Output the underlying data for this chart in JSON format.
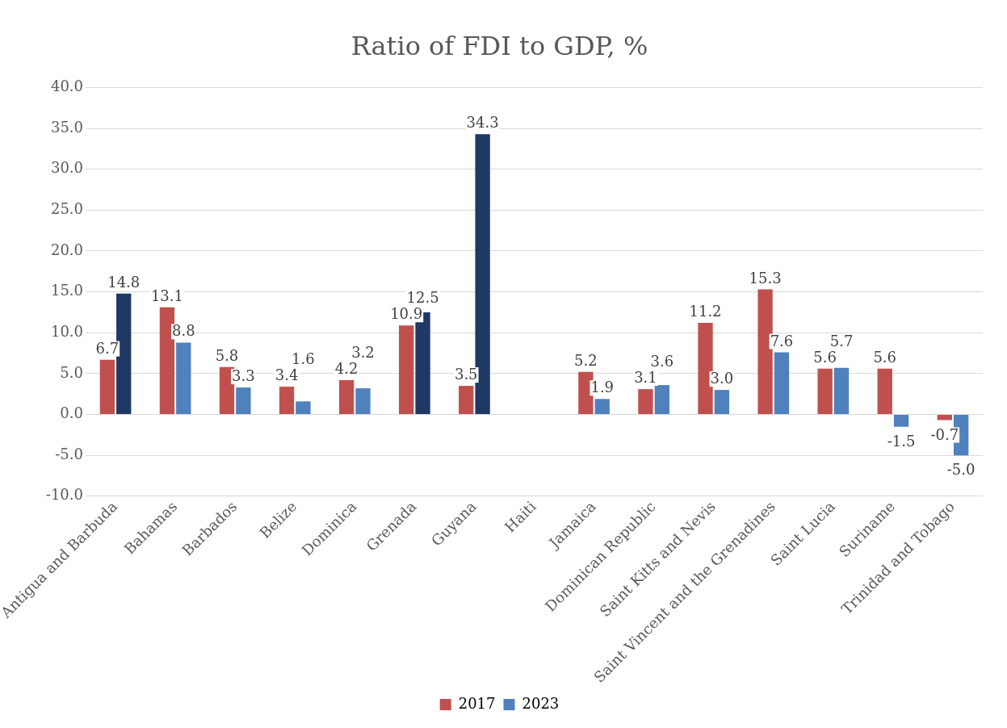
{
  "chart_data": {
    "type": "bar",
    "title": "Ratio of FDI to GDP, %",
    "categories": [
      "Antigua and Barbuda",
      "Bahamas",
      "Barbados",
      "Belize",
      "Dominica",
      "Grenada",
      "Guyana",
      "Haiti",
      "Jamaica",
      "Dominican Republic",
      "Saint Kitts and Nevis",
      "Saint Vincent and the Grenadines",
      "Saint Lucia",
      "Suriname",
      "Trinidad and Tobago"
    ],
    "series": [
      {
        "name": "2017",
        "color": "#c0504d",
        "values": [
          6.7,
          13.1,
          5.8,
          3.4,
          4.2,
          10.9,
          3.5,
          null,
          5.2,
          3.1,
          11.2,
          15.3,
          5.6,
          5.6,
          -0.7
        ],
        "value_labels": [
          "6.7",
          "13.1",
          "5.8",
          "3.4",
          "4.2",
          "10.9",
          "3.5",
          null,
          "5.2",
          "3.1",
          "11.2",
          "15.3",
          "5.6",
          "5.6",
          "-0.7"
        ]
      },
      {
        "name": "2023",
        "color": "#4f81bd",
        "colors": [
          "#1f3864",
          "#4f81bd",
          "#4f81bd",
          "#4f81bd",
          "#4f81bd",
          "#1f3864",
          "#1f3864",
          "#4f81bd",
          "#4f81bd",
          "#4f81bd",
          "#4f81bd",
          "#4f81bd",
          "#4f81bd",
          "#4f81bd",
          "#4f81bd"
        ],
        "values": [
          14.8,
          8.8,
          3.3,
          1.6,
          3.2,
          12.5,
          34.3,
          null,
          1.9,
          3.6,
          3.0,
          7.6,
          5.7,
          -1.5,
          -5.0
        ],
        "value_labels": [
          "14.8",
          "8.8",
          "3.3",
          "1.6",
          "3.2",
          "12.5",
          "34.3",
          null,
          "1.9",
          "3.6",
          "3.0",
          "7.6",
          "5.7",
          "-1.5",
          "-5.0"
        ]
      }
    ],
    "ylim": [
      -10,
      40
    ],
    "yticks": [
      {
        "value": -10,
        "label": "-10.0"
      },
      {
        "value": -5,
        "label": "-5.0"
      },
      {
        "value": 0,
        "label": "0.0"
      },
      {
        "value": 5,
        "label": "5.0"
      },
      {
        "value": 10,
        "label": "10.0"
      },
      {
        "value": 15,
        "label": "15.0"
      },
      {
        "value": 20,
        "label": "20.0"
      },
      {
        "value": 25,
        "label": "25.0"
      },
      {
        "value": 30,
        "label": "30.0"
      },
      {
        "value": 35,
        "label": "35.0"
      },
      {
        "value": 40,
        "label": "40.0"
      }
    ],
    "grid": "y",
    "legend": "bottom"
  }
}
